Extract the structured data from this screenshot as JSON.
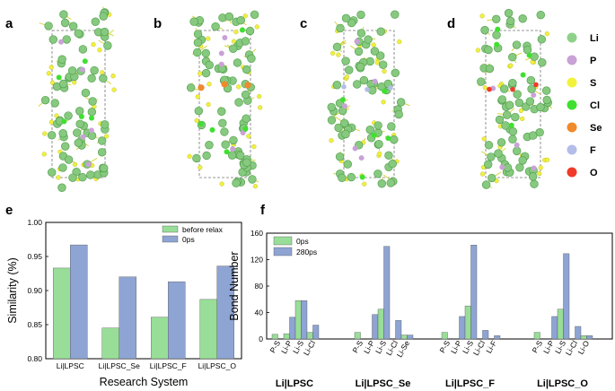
{
  "panels": {
    "a": "a",
    "b": "b",
    "c": "c",
    "d": "d",
    "e": "e",
    "f": "f"
  },
  "legend_elements": [
    {
      "label": "Li",
      "color": "#8fd18a"
    },
    {
      "label": "P",
      "color": "#c9a2d6"
    },
    {
      "label": "S",
      "color": "#f2f23c"
    },
    {
      "label": "Cl",
      "color": "#3fe030"
    },
    {
      "label": "Se",
      "color": "#f08a2c"
    },
    {
      "label": "F",
      "color": "#b4bde8"
    },
    {
      "label": "O",
      "color": "#f03b2a"
    }
  ],
  "structure_colors": {
    "li": "#86c97f",
    "li_stroke": "#4e9b48",
    "s": "#f0f040",
    "p": "#c9a2d6",
    "cl": "#3fe030",
    "se": "#f08a2c",
    "o": "#f03b2a",
    "f": "#b4bde8",
    "bond": "#d6d640",
    "box": "#777777"
  },
  "chart_data": [
    {
      "type": "bar",
      "panel": "e",
      "categories": [
        "Li|LPSC",
        "Li|LPSC_Se",
        "Li|LPSC_F",
        "Li|LPSC_O"
      ],
      "series": [
        {
          "name": "before relax",
          "color": "#98de98",
          "values": [
            0.933,
            0.845,
            0.861,
            0.887
          ]
        },
        {
          "name": "0ps",
          "color": "#8ea4d3",
          "values": [
            0.967,
            0.92,
            0.913,
            0.936
          ]
        }
      ],
      "ylim": [
        0.8,
        1.0
      ],
      "yticks": [
        "0.80",
        "0.85",
        "0.90",
        "0.95",
        "1.00"
      ],
      "xlabel": "Research System",
      "ylabel": "Similarity (%)",
      "legend_position": "top-right"
    },
    {
      "type": "bar",
      "panel": "f",
      "groups": [
        {
          "name": "Li|LPSC",
          "bonds": [
            "P-S",
            "Li-P",
            "Li-S",
            "Li-Cl"
          ],
          "series0": [
            7,
            8,
            58,
            10
          ],
          "series1": [
            0,
            33,
            58,
            21
          ]
        },
        {
          "name": "Li|LPSC_Se",
          "bonds": [
            "P-S",
            "Li-P",
            "Li-S",
            "Li-Cl",
            "Li-Se"
          ],
          "series0": [
            10,
            0,
            45,
            0,
            6
          ],
          "series1": [
            0,
            37,
            140,
            28,
            6
          ]
        },
        {
          "name": "Li|LPSC_F",
          "bonds": [
            "P-S",
            "Li-P",
            "Li-S",
            "Li-Cl",
            "Li-F"
          ],
          "series0": [
            10,
            0,
            50,
            0,
            0
          ],
          "series1": [
            0,
            34,
            142,
            13,
            5
          ]
        },
        {
          "name": "Li|LPSC_O",
          "bonds": [
            "P-S",
            "Li-P",
            "Li-S",
            "Li-Cl",
            "Li-O"
          ],
          "series0": [
            10,
            0,
            45,
            0,
            5
          ],
          "series1": [
            0,
            34,
            129,
            19,
            5
          ]
        }
      ],
      "series": [
        {
          "name": "0ps",
          "color": "#98de98"
        },
        {
          "name": "280ps",
          "color": "#8ea4d3"
        }
      ],
      "ylim": [
        0,
        160
      ],
      "yticks": [
        "0",
        "40",
        "80",
        "120",
        "160"
      ],
      "ylabel": "Bond Number",
      "legend_position": "top-left"
    }
  ]
}
